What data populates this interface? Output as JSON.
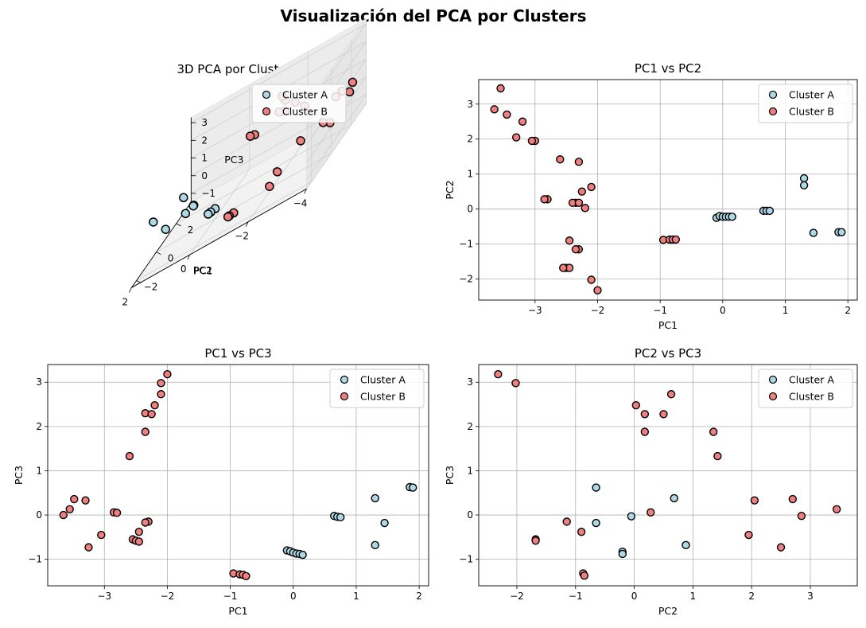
{
  "suptitle": "Visualización del PCA por Clusters",
  "colors": {
    "cluster_a": "#add8e6",
    "cluster_b": "#f08080",
    "edge": "#000000",
    "grid": "#b0b0b0"
  },
  "chart_data": [
    {
      "type": "scatter3d",
      "title": "3D PCA por Clusters",
      "xlabel": "PC1",
      "ylabel": "PC2",
      "zlabel": "PC3",
      "xticks": [
        -4,
        -2,
        0,
        2
      ],
      "yticks": [
        -2,
        0,
        2
      ],
      "zticks": [
        -1,
        0,
        1,
        2,
        3
      ],
      "xlim": [
        -4,
        2
      ],
      "ylim": [
        -2.5,
        3.5
      ],
      "zlim": [
        -1.5,
        3.3
      ],
      "legend": "top-right",
      "series": [
        {
          "name": "Cluster A",
          "color": "#add8e6",
          "points": [
            [
              -0.1,
              -0.25,
              -0.8
            ],
            [
              0.05,
              -0.25,
              -0.85
            ],
            [
              0.15,
              -0.22,
              -0.9
            ],
            [
              0.7,
              -0.05,
              -0.02
            ],
            [
              0.72,
              -0.04,
              -0.05
            ],
            [
              1.3,
              0.88,
              -0.68
            ],
            [
              1.3,
              0.68,
              0.38
            ],
            [
              1.45,
              -0.68,
              -0.18
            ],
            [
              1.88,
              -0.66,
              0.62
            ]
          ]
        },
        {
          "name": "Cluster B",
          "color": "#f08080",
          "points": [
            [
              -3.55,
              3.45,
              0.15
            ],
            [
              -3.65,
              2.85,
              0.0
            ],
            [
              -3.45,
              2.7,
              0.35
            ],
            [
              -3.25,
              2.05,
              -0.73
            ],
            [
              -3.3,
              2.5,
              0.33
            ],
            [
              -3.05,
              1.95,
              -0.45
            ],
            [
              -2.85,
              0.28,
              0.05
            ],
            [
              -2.6,
              1.42,
              1.33
            ],
            [
              -2.45,
              -0.9,
              -0.38
            ],
            [
              -2.45,
              -1.68,
              -0.58
            ],
            [
              -2.35,
              0.18,
              2.28
            ],
            [
              -2.3,
              1.35,
              1.88
            ],
            [
              -2.25,
              0.5,
              2.73
            ],
            [
              -2.2,
              0.03,
              2.48
            ],
            [
              -2.1,
              0.63,
              2.98
            ],
            [
              -2.0,
              -2.3,
              3.18
            ],
            [
              -2.05,
              -2.0,
              2.98
            ],
            [
              -0.95,
              -0.88,
              -1.32
            ],
            [
              -0.8,
              -0.88,
              -1.35
            ],
            [
              -0.75,
              -0.87,
              -1.37
            ]
          ]
        }
      ]
    },
    {
      "type": "scatter",
      "title": "PC1 vs PC2",
      "xlabel": "PC1",
      "ylabel": "PC2",
      "xlim": [
        -3.9,
        2.15
      ],
      "ylim": [
        -2.6,
        3.7
      ],
      "xticks": [
        -3,
        -2,
        -1,
        0,
        1,
        2
      ],
      "yticks": [
        -2,
        -1,
        0,
        1,
        2,
        3
      ],
      "grid": true,
      "legend": "top-right",
      "series": [
        {
          "name": "Cluster A",
          "color": "#add8e6",
          "points": [
            [
              -0.1,
              -0.25
            ],
            [
              -0.05,
              -0.2
            ],
            [
              0.0,
              -0.22
            ],
            [
              0.05,
              -0.22
            ],
            [
              0.1,
              -0.22
            ],
            [
              0.15,
              -0.22
            ],
            [
              0.65,
              -0.05
            ],
            [
              0.7,
              -0.05
            ],
            [
              0.75,
              -0.05
            ],
            [
              1.3,
              0.88
            ],
            [
              1.3,
              0.68
            ],
            [
              1.45,
              -0.68
            ],
            [
              1.85,
              -0.66
            ],
            [
              1.9,
              -0.66
            ]
          ]
        },
        {
          "name": "Cluster B",
          "color": "#f08080",
          "points": [
            [
              -3.55,
              3.45
            ],
            [
              -3.65,
              2.85
            ],
            [
              -3.45,
              2.7
            ],
            [
              -3.3,
              2.05
            ],
            [
              -3.2,
              2.5
            ],
            [
              -3.0,
              1.95
            ],
            [
              -3.05,
              1.95
            ],
            [
              -2.8,
              0.28
            ],
            [
              -2.85,
              0.28
            ],
            [
              -2.6,
              1.42
            ],
            [
              -2.45,
              -0.9
            ],
            [
              -2.5,
              -1.68
            ],
            [
              -2.45,
              -1.68
            ],
            [
              -2.55,
              -1.68
            ],
            [
              -2.3,
              1.35
            ],
            [
              -2.35,
              0.18
            ],
            [
              -2.4,
              0.18
            ],
            [
              -2.3,
              0.18
            ],
            [
              -2.3,
              -1.15
            ],
            [
              -2.35,
              -1.15
            ],
            [
              -2.25,
              0.5
            ],
            [
              -2.2,
              0.03
            ],
            [
              -2.1,
              0.63
            ],
            [
              -2.1,
              -2.02
            ],
            [
              -2.0,
              -2.32
            ],
            [
              -0.95,
              -0.88
            ],
            [
              -0.85,
              -0.87
            ],
            [
              -0.8,
              -0.87
            ],
            [
              -0.75,
              -0.87
            ]
          ]
        }
      ]
    },
    {
      "type": "scatter",
      "title": "PC1 vs PC3",
      "xlabel": "PC1",
      "ylabel": "PC3",
      "xlim": [
        -3.9,
        2.15
      ],
      "ylim": [
        -1.6,
        3.4
      ],
      "xticks": [
        -3,
        -2,
        -1,
        0,
        1,
        2
      ],
      "yticks": [
        -1,
        0,
        1,
        2,
        3
      ],
      "grid": true,
      "legend": "top-right",
      "series": [
        {
          "name": "Cluster A",
          "color": "#add8e6",
          "points": [
            [
              -0.1,
              -0.8
            ],
            [
              -0.05,
              -0.82
            ],
            [
              0.0,
              -0.85
            ],
            [
              0.05,
              -0.87
            ],
            [
              0.1,
              -0.88
            ],
            [
              0.15,
              -0.9
            ],
            [
              0.65,
              -0.02
            ],
            [
              0.7,
              -0.04
            ],
            [
              0.75,
              -0.05
            ],
            [
              1.3,
              0.38
            ],
            [
              1.3,
              -0.68
            ],
            [
              1.45,
              -0.18
            ],
            [
              1.85,
              0.63
            ],
            [
              1.9,
              0.62
            ]
          ]
        },
        {
          "name": "Cluster B",
          "color": "#f08080",
          "points": [
            [
              -3.65,
              0.0
            ],
            [
              -3.55,
              0.13
            ],
            [
              -3.48,
              0.36
            ],
            [
              -3.3,
              0.33
            ],
            [
              -3.25,
              -0.73
            ],
            [
              -3.05,
              -0.45
            ],
            [
              -2.85,
              0.06
            ],
            [
              -2.8,
              0.05
            ],
            [
              -2.6,
              1.33
            ],
            [
              -2.55,
              -0.55
            ],
            [
              -2.5,
              -0.58
            ],
            [
              -2.45,
              -0.38
            ],
            [
              -2.45,
              -0.6
            ],
            [
              -2.35,
              1.88
            ],
            [
              -2.3,
              -0.15
            ],
            [
              -2.35,
              -0.17
            ],
            [
              -2.35,
              2.3
            ],
            [
              -2.25,
              2.28
            ],
            [
              -2.2,
              2.48
            ],
            [
              -2.1,
              2.73
            ],
            [
              -2.1,
              2.98
            ],
            [
              -2.0,
              3.18
            ],
            [
              -0.95,
              -1.32
            ],
            [
              -0.85,
              -1.34
            ],
            [
              -0.8,
              -1.35
            ],
            [
              -0.75,
              -1.38
            ]
          ]
        }
      ]
    },
    {
      "type": "scatter",
      "title": "PC2 vs PC3",
      "xlabel": "PC2",
      "ylabel": "PC3",
      "xlim": [
        -2.65,
        3.8
      ],
      "ylim": [
        -1.6,
        3.4
      ],
      "xticks": [
        -2,
        -1,
        0,
        1,
        2,
        3
      ],
      "yticks": [
        -1,
        0,
        1,
        2,
        3
      ],
      "grid": true,
      "legend": "top-right",
      "series": [
        {
          "name": "Cluster A",
          "color": "#add8e6",
          "points": [
            [
              -0.2,
              -0.83
            ],
            [
              -0.2,
              -0.88
            ],
            [
              -0.05,
              -0.03
            ],
            [
              -0.65,
              0.62
            ],
            [
              -0.65,
              -0.18
            ],
            [
              0.68,
              0.38
            ],
            [
              0.88,
              -0.68
            ]
          ]
        },
        {
          "name": "Cluster B",
          "color": "#f08080",
          "points": [
            [
              -2.32,
              3.18
            ],
            [
              -2.02,
              2.98
            ],
            [
              -1.68,
              -0.55
            ],
            [
              -1.68,
              -0.58
            ],
            [
              -1.15,
              -0.15
            ],
            [
              -0.9,
              -0.38
            ],
            [
              -0.87,
              -1.32
            ],
            [
              -0.85,
              -1.37
            ],
            [
              0.03,
              2.48
            ],
            [
              0.18,
              2.28
            ],
            [
              0.18,
              1.88
            ],
            [
              0.28,
              0.06
            ],
            [
              0.5,
              2.28
            ],
            [
              0.63,
              2.73
            ],
            [
              1.35,
              1.88
            ],
            [
              1.42,
              1.33
            ],
            [
              1.95,
              -0.45
            ],
            [
              2.05,
              0.33
            ],
            [
              2.5,
              -0.73
            ],
            [
              2.7,
              0.36
            ],
            [
              2.85,
              -0.02
            ],
            [
              3.45,
              0.13
            ]
          ]
        }
      ]
    }
  ]
}
